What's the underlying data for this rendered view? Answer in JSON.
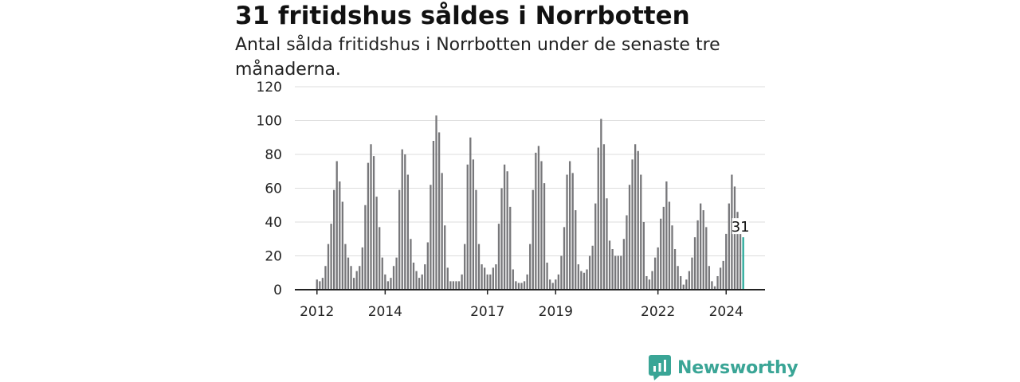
{
  "title": "31 fritidshus såldes i Norrbotten",
  "subtitle": "Antal sålda fritidshus i Norrbotten under de senaste tre månaderna.",
  "brand": "Newsworthy",
  "colors": {
    "bar": "#77777a",
    "highlight": "#29a99a",
    "grid": "#dddddd",
    "axis": "#222222"
  },
  "chart_data": {
    "type": "bar",
    "ylim": [
      0,
      120
    ],
    "yticks": [
      0,
      20,
      40,
      60,
      80,
      100,
      120
    ],
    "xtick_labels": [
      {
        "label": "2012",
        "index": 0
      },
      {
        "label": "2014",
        "index": 24
      },
      {
        "label": "2017",
        "index": 60
      },
      {
        "label": "2019",
        "index": 84
      },
      {
        "label": "2022",
        "index": 120
      },
      {
        "label": "2024",
        "index": 144
      }
    ],
    "start": "2012-01",
    "values": [
      6,
      5,
      7,
      14,
      27,
      39,
      59,
      76,
      64,
      52,
      27,
      19,
      14,
      7,
      11,
      14,
      25,
      50,
      75,
      86,
      79,
      55,
      37,
      19,
      9,
      5,
      7,
      14,
      19,
      59,
      83,
      80,
      68,
      30,
      16,
      11,
      7,
      9,
      15,
      28,
      62,
      88,
      103,
      93,
      69,
      38,
      13,
      5,
      5,
      5,
      5,
      9,
      27,
      74,
      90,
      77,
      59,
      27,
      15,
      13,
      9,
      9,
      13,
      15,
      39,
      60,
      74,
      70,
      49,
      12,
      5,
      4,
      4,
      5,
      9,
      27,
      59,
      81,
      85,
      76,
      63,
      16,
      6,
      4,
      6,
      9,
      20,
      37,
      68,
      76,
      69,
      47,
      15,
      11,
      10,
      12,
      20,
      26,
      51,
      84,
      101,
      86,
      54,
      29,
      24,
      20,
      20,
      20,
      30,
      44,
      62,
      77,
      86,
      82,
      68,
      40,
      8,
      6,
      11,
      19,
      25,
      42,
      49,
      64,
      52,
      38,
      24,
      14,
      8,
      3,
      6,
      11,
      19,
      31,
      41,
      51,
      47,
      37,
      14,
      5,
      2,
      8,
      13,
      17,
      33,
      51,
      68,
      61,
      46,
      38,
      31
    ],
    "highlight_index": 150,
    "highlight_label": "31"
  }
}
